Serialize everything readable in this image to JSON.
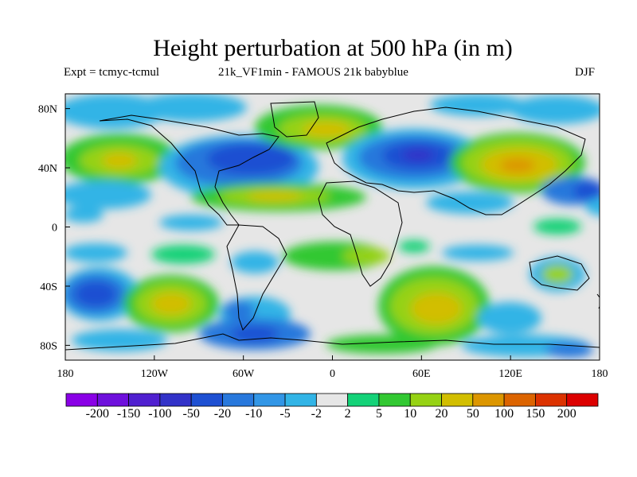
{
  "title": "Height perturbation at 500 hPa (in m)",
  "experiment": "Expt = tcmyc-tcmul",
  "run_label": "21k_VF1min - FAMOUS 21k babyblue",
  "season": "DJF",
  "map": {
    "projection": "cylindrical equidistant",
    "lon_range": [
      -180,
      180
    ],
    "lat_range": [
      -90,
      90
    ],
    "x_ticks": [
      "180",
      "120W",
      "60W",
      "0",
      "60E",
      "120E",
      "180"
    ],
    "y_ticks": [
      "80N",
      "40N",
      "0",
      "40S",
      "80S"
    ],
    "background_color": "#e6e6e6",
    "coastline_color": "#000000"
  },
  "colorbar": {
    "labels": [
      "-200",
      "-150",
      "-100",
      "-50",
      "-20",
      "-10",
      "-5",
      "-2",
      "2",
      "5",
      "10",
      "20",
      "50",
      "100",
      "150",
      "200"
    ],
    "colors": [
      "#8a00e6",
      "#6e10dc",
      "#5020d0",
      "#3232c8",
      "#1e50d2",
      "#2878dc",
      "#3296e6",
      "#32b4e6",
      "#e6e6e6",
      "#14d278",
      "#32c832",
      "#96d214",
      "#d2be00",
      "#dc9600",
      "#dc6400",
      "#dc3200",
      "#dc0000"
    ]
  }
}
